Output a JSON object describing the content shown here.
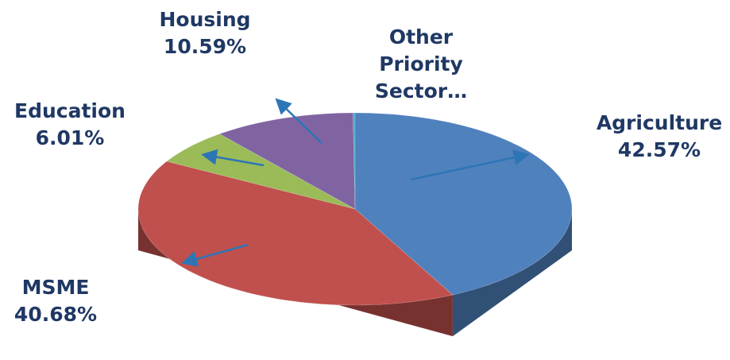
{
  "chart_data": {
    "type": "pie",
    "categories": [
      "Agriculture",
      "MSME",
      "Education",
      "Housing",
      "Other Priority Sector…"
    ],
    "values": [
      42.57,
      40.68,
      6.01,
      10.59,
      0.15
    ],
    "value_labels": [
      "42.57%",
      "40.68%",
      "6.01%",
      "10.59%",
      null
    ],
    "colors": [
      "#4f81bd",
      "#c0504d",
      "#9bbb59",
      "#8064a2",
      "#4bacc6"
    ]
  }
}
